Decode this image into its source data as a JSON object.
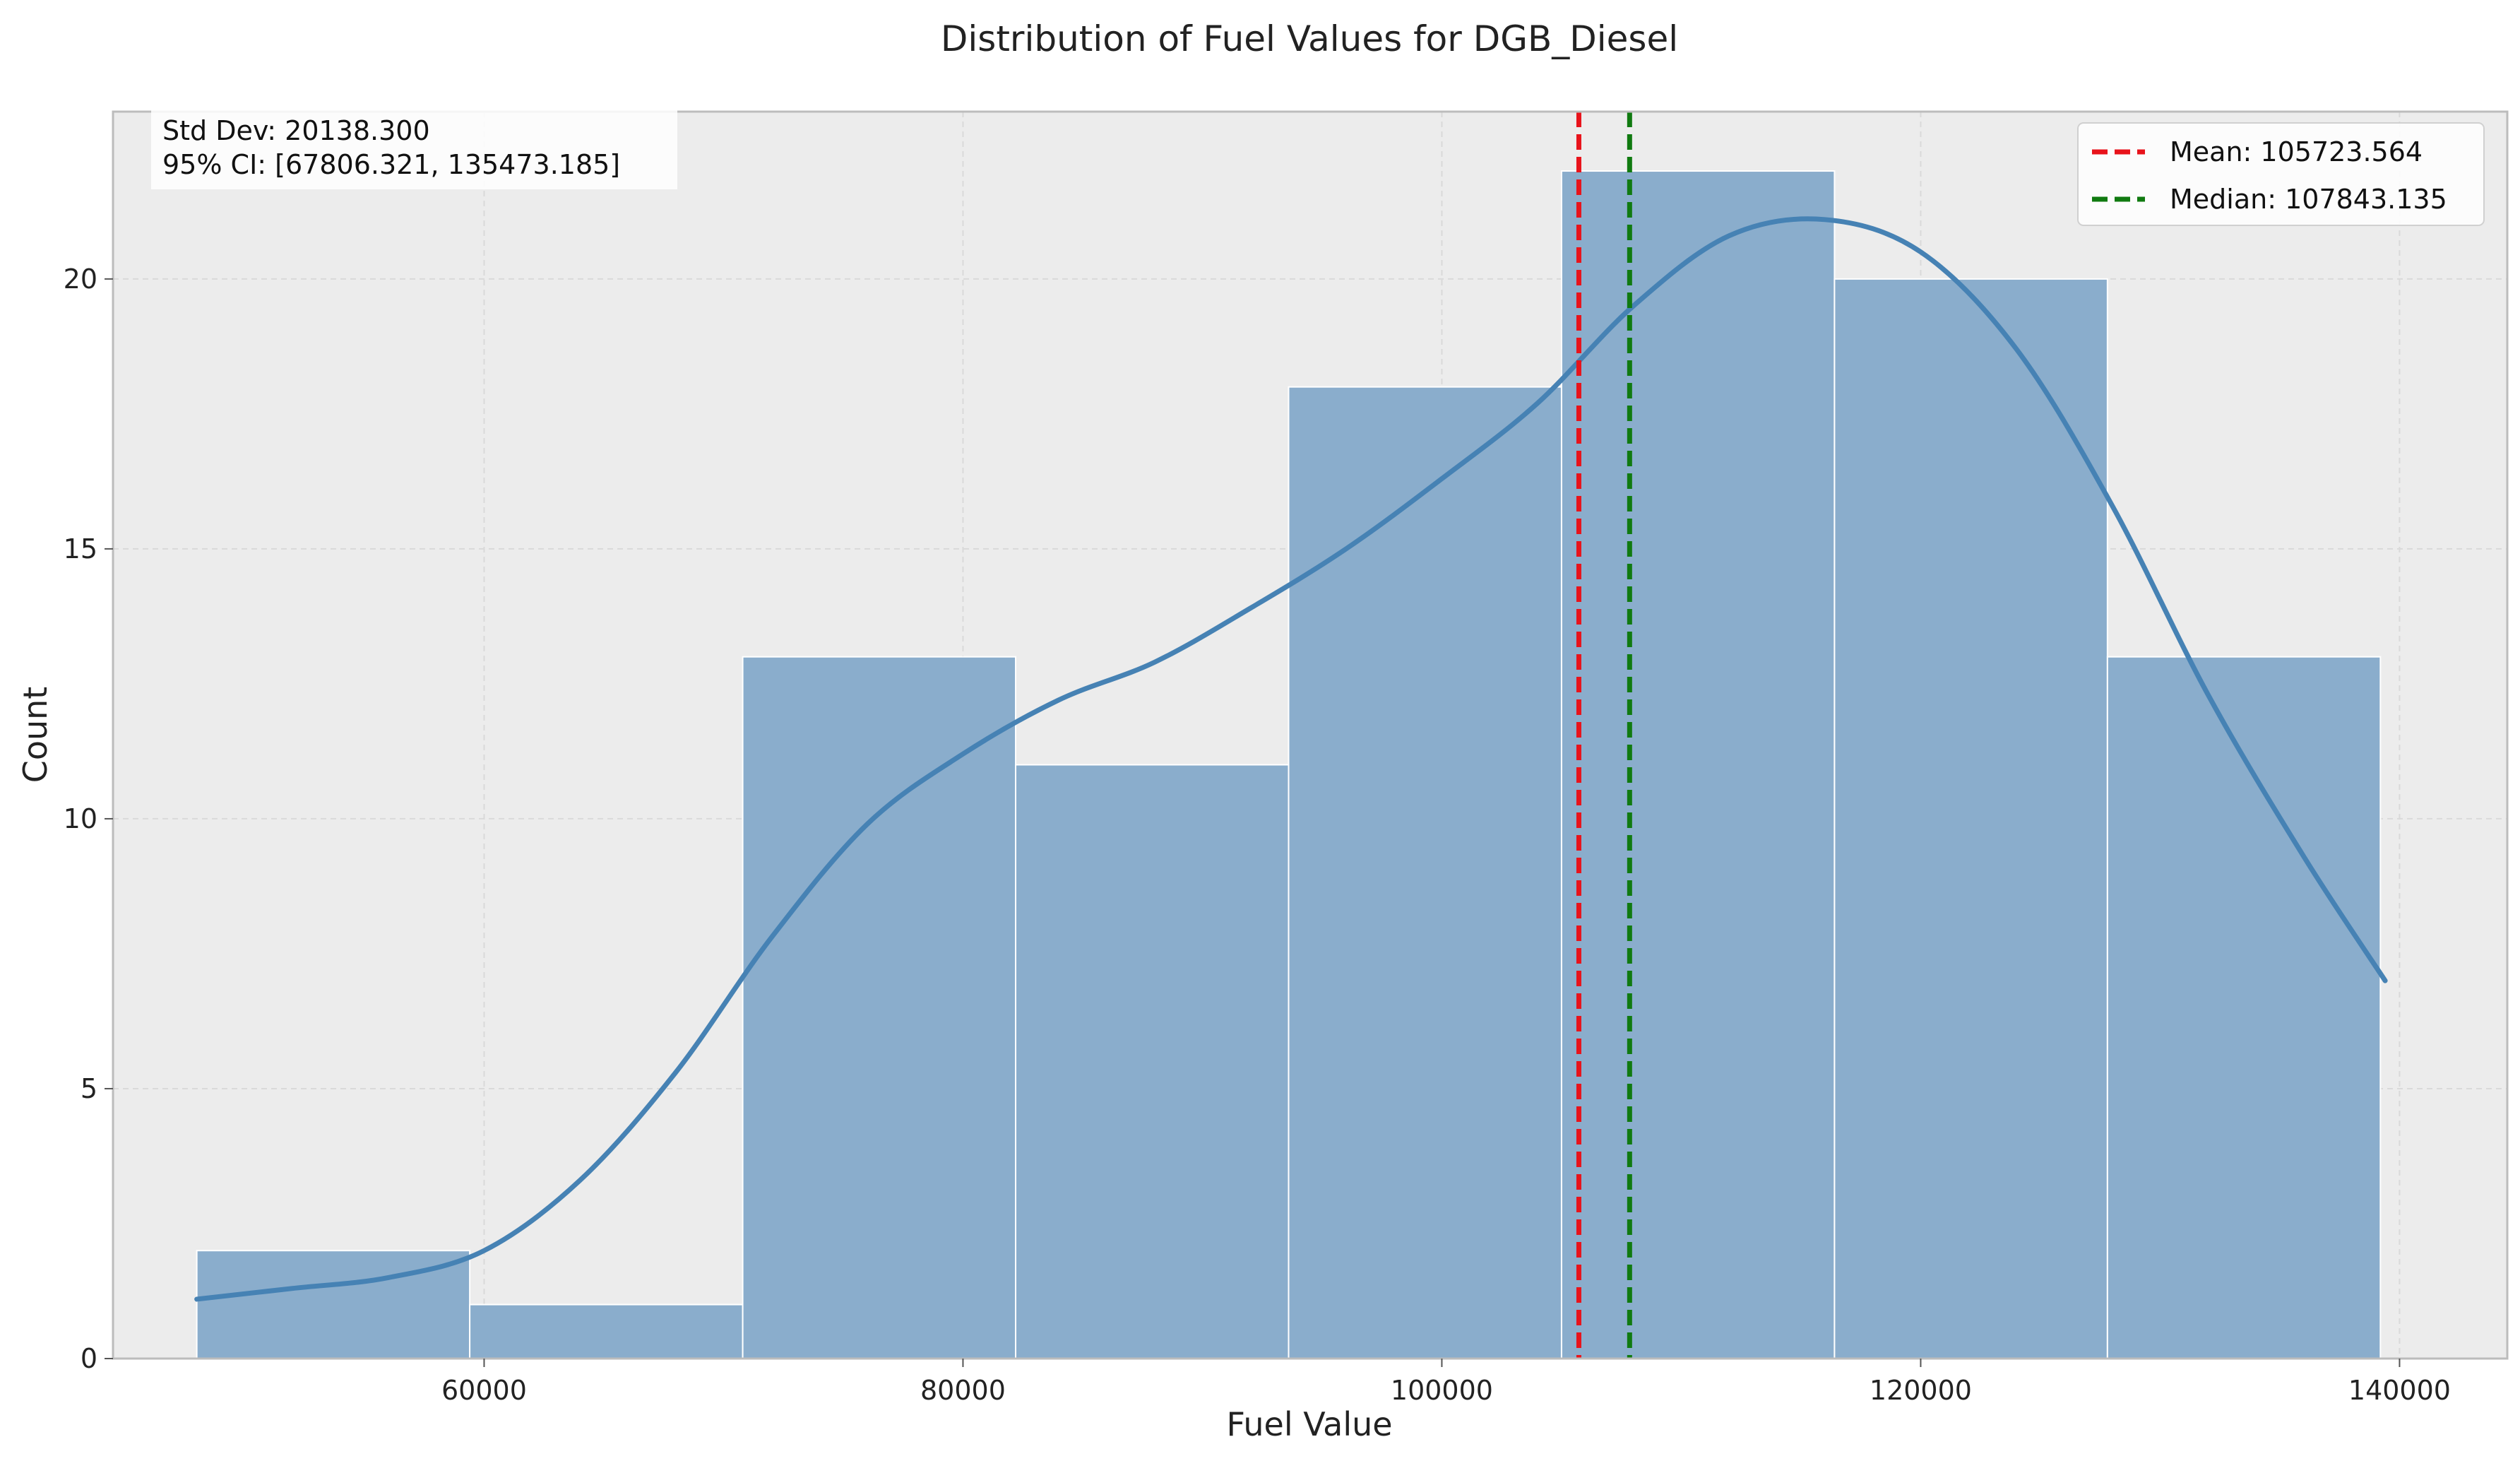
{
  "chart_data": {
    "type": "bar",
    "title": "Distribution of Fuel Values for DGB_Diesel",
    "xlabel": "Fuel Value",
    "ylabel": "Count",
    "xlim": [
      44500,
      144500
    ],
    "ylim": [
      0,
      23.1
    ],
    "xticks": [
      60000,
      80000,
      100000,
      120000,
      140000
    ],
    "yticks": [
      0,
      5,
      10,
      15,
      20
    ],
    "bin_edges": [
      48000,
      59400,
      70800,
      82200,
      93600,
      105000,
      116400,
      127800,
      139200
    ],
    "counts": [
      2,
      1,
      13,
      11,
      18,
      22,
      20,
      13
    ],
    "kde": {
      "x": [
        48000,
        52000,
        56000,
        60000,
        64000,
        68000,
        72000,
        76000,
        80000,
        84000,
        88000,
        92000,
        96000,
        100000,
        104000,
        108000,
        112000,
        116000,
        120000,
        124000,
        128000,
        132000,
        136000,
        139400
      ],
      "y": [
        1.1,
        1.3,
        1.5,
        2.0,
        3.3,
        5.3,
        7.8,
        9.9,
        11.2,
        12.2,
        12.9,
        13.9,
        15.0,
        16.3,
        17.7,
        19.5,
        20.8,
        21.1,
        20.5,
        18.7,
        15.8,
        12.3,
        9.3,
        7.0
      ]
    },
    "mean": {
      "value": 105723.564,
      "label": "Mean: 105723.564",
      "color": "#e8131b"
    },
    "median": {
      "value": 107843.135,
      "label": "Median: 107843.135",
      "color": "#107a10"
    },
    "stats": {
      "std_dev_label": "Std Dev: 20138.300",
      "ci_label": "95% CI: [67806.321, 135473.185]"
    },
    "grid": true,
    "legend_position": "top-right",
    "colors": {
      "bar_fill": "#8aadcc",
      "bar_edge": "#ffffff",
      "kde_line": "#4682b4",
      "plot_bg": "#ececec",
      "grid": "#d9d9d9",
      "spine": "#bcbcbc"
    }
  }
}
